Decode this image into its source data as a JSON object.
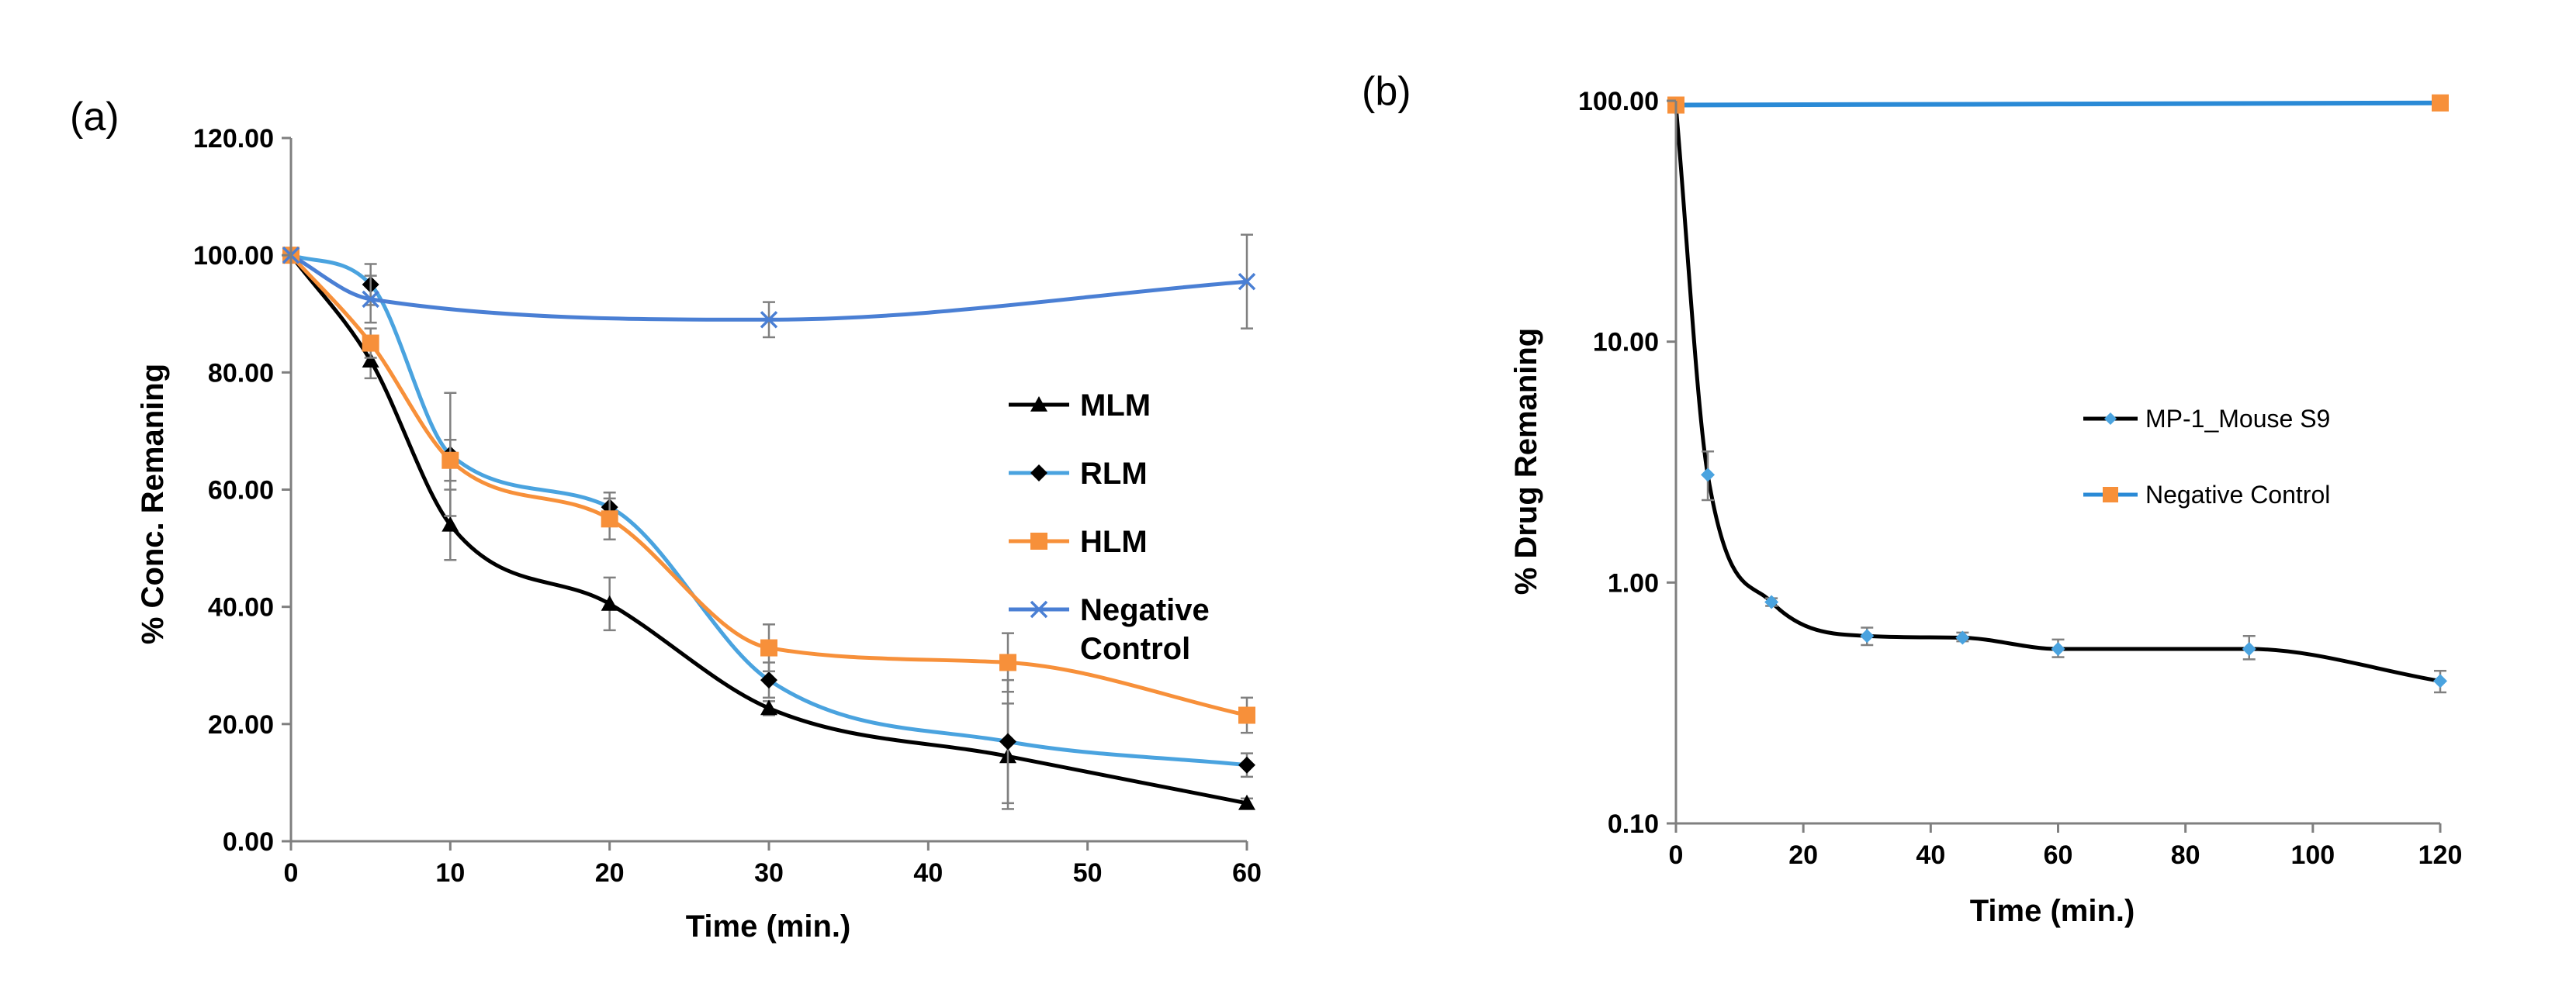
{
  "chart_data": [
    {
      "panel": "(a)",
      "type": "line",
      "title": "",
      "xlabel": "Time (min.)",
      "ylabel": "% Conc. Remaning",
      "xlim": [
        0,
        60
      ],
      "ylim": [
        0,
        120
      ],
      "xticks": [
        0,
        10,
        20,
        30,
        40,
        50,
        60
      ],
      "xtick_labels": [
        "0",
        "10",
        "20",
        "30",
        "40",
        "50",
        "60"
      ],
      "yticks": [
        0,
        20,
        40,
        60,
        80,
        100,
        120
      ],
      "ytick_labels": [
        "0.00",
        "20.00",
        "40.00",
        "60.00",
        "80.00",
        "100.00",
        "120.00"
      ],
      "yscale": "linear",
      "legend_position": "center-right",
      "series": [
        {
          "name": "MLM",
          "legend_lines": [
            "MLM"
          ],
          "color": "#000000",
          "marker": "triangle",
          "x": [
            0,
            5,
            10,
            20,
            30,
            45,
            60
          ],
          "y": [
            100,
            82,
            54,
            40.5,
            22.7,
            14.5,
            6.5
          ],
          "err": [
            0,
            3,
            6,
            4.5,
            1.2,
            9,
            0.8
          ]
        },
        {
          "name": "RLM",
          "legend_lines": [
            "RLM"
          ],
          "color": "#4aa3df",
          "marker": "diamond",
          "marker_color": "#000000",
          "x": [
            0,
            5,
            10,
            20,
            30,
            45,
            60
          ],
          "y": [
            100,
            95,
            66,
            57,
            27.5,
            17,
            13
          ],
          "err": [
            0,
            3.5,
            10.5,
            2.5,
            3,
            10.5,
            2
          ]
        },
        {
          "name": "HLM",
          "legend_lines": [
            "HLM"
          ],
          "color": "#f7903a",
          "marker": "square",
          "x": [
            0,
            5,
            10,
            20,
            30,
            45,
            60
          ],
          "y": [
            100,
            85,
            65,
            55,
            33,
            30.5,
            21.5
          ],
          "err": [
            0,
            2.5,
            3.5,
            3.5,
            4,
            5,
            3
          ]
        },
        {
          "name": "Negative Control",
          "legend_lines": [
            "Negative",
            "Control"
          ],
          "color": "#4a7fd4",
          "marker": "x",
          "x": [
            0,
            5,
            30,
            60
          ],
          "y": [
            100,
            92.5,
            89,
            95.5
          ],
          "err": [
            0,
            4,
            3,
            8
          ]
        }
      ]
    },
    {
      "panel": "(b)",
      "type": "line",
      "title": "",
      "xlabel": "Time (min.)",
      "ylabel": "% Drug Remaning",
      "xlim": [
        0,
        120
      ],
      "ylim": [
        0.1,
        100
      ],
      "yscale": "log",
      "xticks": [
        0,
        20,
        40,
        60,
        80,
        100,
        120
      ],
      "xtick_labels": [
        "0",
        "20",
        "40",
        "60",
        "80",
        "100",
        "120"
      ],
      "yticks": [
        0.1,
        1,
        10,
        100
      ],
      "ytick_labels": [
        "0.10",
        "1.00",
        "10.00",
        "100.00"
      ],
      "legend_position": "center-right",
      "series": [
        {
          "name": "MP-1_Mouse S9",
          "color": "#000000",
          "marker": "diamond",
          "marker_color": "#4aa3df",
          "x": [
            0,
            5,
            15,
            30,
            45,
            60,
            90,
            120
          ],
          "y": [
            95,
            2.8,
            0.83,
            0.6,
            0.59,
            0.53,
            0.53,
            0.39
          ],
          "err_low": [
            95,
            2.2,
            0.8,
            0.55,
            0.57,
            0.49,
            0.48,
            0.35
          ],
          "err_high": [
            95,
            3.5,
            0.86,
            0.65,
            0.62,
            0.58,
            0.6,
            0.43
          ]
        },
        {
          "name": "Negative Control",
          "color": "#2a8ad6",
          "marker": "square",
          "marker_color": "#f7903a",
          "x": [
            0,
            120
          ],
          "y": [
            96,
            98
          ]
        }
      ]
    }
  ]
}
